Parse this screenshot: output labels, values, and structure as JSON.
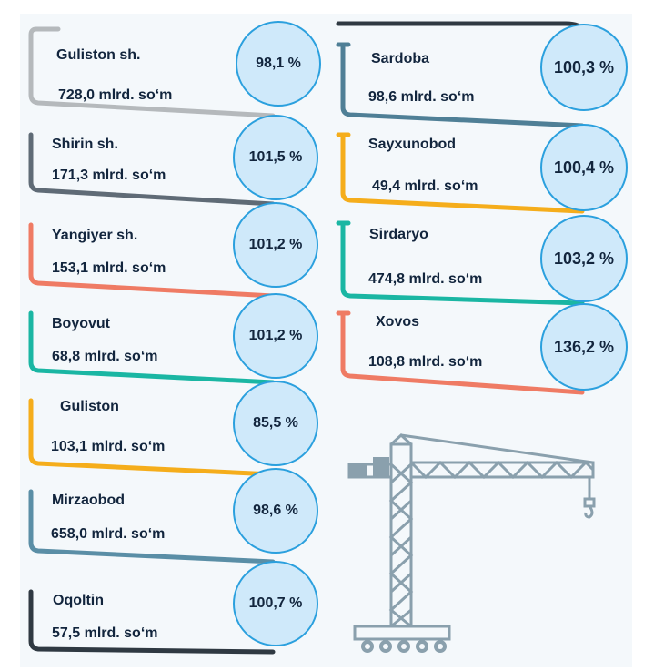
{
  "left_items": [
    {
      "name": "Guliston sh.",
      "value": "728,0 mlrd. so‘m",
      "percent": "98,1 %",
      "color": "#b5b9bc"
    },
    {
      "name": "Shirin sh.",
      "value": "171,3 mlrd. so‘m",
      "percent": "101,5 %",
      "color": "#5f6b76"
    },
    {
      "name": "Yangiyer sh.",
      "value": "153,1 mlrd. so‘m",
      "percent": "101,2 %",
      "color": "#ef7b64"
    },
    {
      "name": "Boyovut",
      "value": "68,8 mlrd. so‘m",
      "percent": "101,2 %",
      "color": "#1ab6a3"
    },
    {
      "name": "Guliston",
      "value": "103,1 mlrd. so‘m",
      "percent": "85,5 %",
      "color": "#f5ad1b"
    },
    {
      "name": "Mirzaobod",
      "value": "658,0 mlrd. so‘m",
      "percent": "98,6 %",
      "color": "#5a8ea6"
    },
    {
      "name": "Oqoltin",
      "value": "57,5 mlrd. so‘m",
      "percent": "100,7 %",
      "color": "#2f3942"
    }
  ],
  "right_items": [
    {
      "name": "Sardoba",
      "value": "98,6 mlrd. so‘m",
      "percent": "100,3 %",
      "color": "#4f7f96"
    },
    {
      "name": "Sayxunobod",
      "value": "49,4 mlrd. so‘m",
      "percent": "100,4 %",
      "color": "#f5ad1b"
    },
    {
      "name": "Sirdaryo",
      "value": "474,8 mlrd. so‘m",
      "percent": "103,2 %",
      "color": "#1ab6a3"
    },
    {
      "name": "Xovos",
      "value": "108,8 mlrd. so‘m",
      "percent": "136,2 %",
      "color": "#ef7b64"
    }
  ],
  "colors": {
    "panel": "#f4f8fb",
    "circle_fill": "#cfe9fa",
    "circle_border": "#2ba0de",
    "text": "#12253d",
    "crane": "#8aa0ad"
  },
  "icons": {
    "crane": "tower-crane-icon"
  }
}
